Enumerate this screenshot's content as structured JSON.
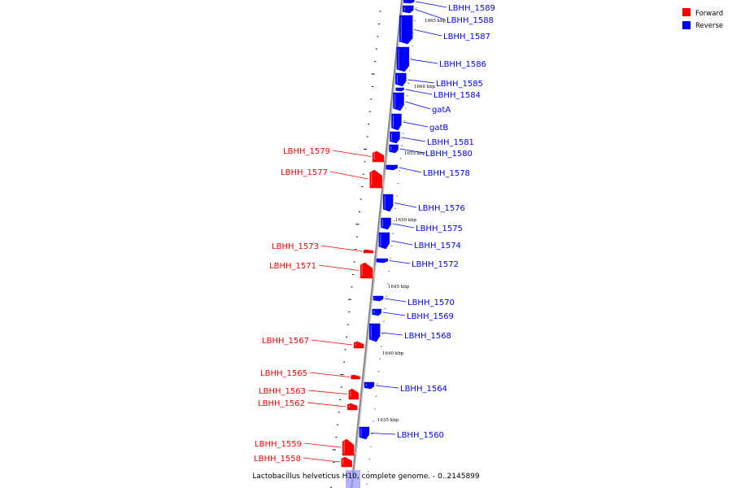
{
  "caption": "Lactobacillus helveticus H10, complete genome. - 0..2145899",
  "legend": [
    {
      "label": "Forward",
      "color": "#ff0000"
    },
    {
      "label": "Reverse",
      "color": "#0000ff"
    }
  ],
  "colors": {
    "forward": "#ff0000",
    "reverse": "#0000ff",
    "backbone": "#888888",
    "highlight": "#9999ff"
  },
  "ruler_labels": [
    "1665 kbp",
    "1660 kbp",
    "1655 kbp",
    "1650 kbp",
    "1645 kbp",
    "1640 kbp",
    "1635 kbp"
  ],
  "genes_reverse": [
    "LBHH_1589",
    "LBHH_1588",
    "LBHH_1587",
    "LBHH_1586",
    "LBHH_1585",
    "LBHH_1584",
    "gatA",
    "gatB",
    "LBHH_1581",
    "LBHH_1580",
    "LBHH_1578",
    "LBHH_1576",
    "LBHH_1575",
    "LBHH_1574",
    "LBHH_1572",
    "LBHH_1570",
    "LBHH_1569",
    "LBHH_1568",
    "LBHH_1564",
    "LBHH_1560"
  ],
  "genes_forward": [
    "LBHH_1579",
    "LBHH_1577",
    "LBHH_1573",
    "LBHH_1571",
    "LBHH_1567",
    "LBHH_1565",
    "LBHH_1563",
    "LBHH_1562",
    "LBHH_1559",
    "LBHH_1558"
  ]
}
